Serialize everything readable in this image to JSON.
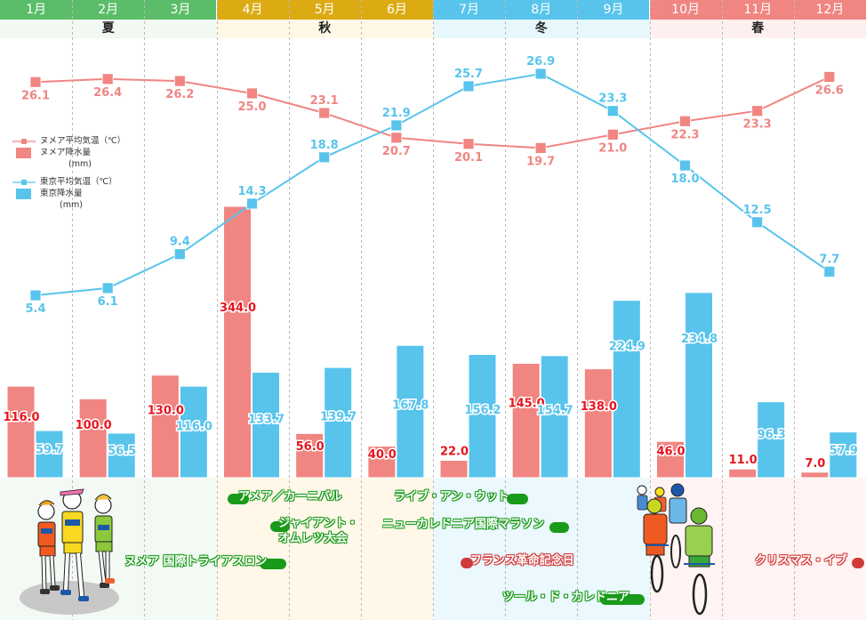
{
  "header": {
    "months": [
      {
        "label": "1月",
        "color": "#5bbd6a"
      },
      {
        "label": "2月",
        "color": "#5bbd6a"
      },
      {
        "label": "3月",
        "color": "#5bbd6a"
      },
      {
        "label": "4月",
        "color": "#dcab14"
      },
      {
        "label": "5月",
        "color": "#dcab14"
      },
      {
        "label": "6月",
        "color": "#dcab14"
      },
      {
        "label": "7月",
        "color": "#58c4ec"
      },
      {
        "label": "8月",
        "color": "#58c4ec"
      },
      {
        "label": "9月",
        "color": "#58c4ec"
      },
      {
        "label": "10月",
        "color": "#f08582"
      },
      {
        "label": "11月",
        "color": "#f08582"
      },
      {
        "label": "12月",
        "color": "#f08582"
      }
    ],
    "seasons": [
      {
        "label": "夏",
        "band": "#f1f9f2",
        "event_band": "#f3faf4"
      },
      {
        "label": "秋",
        "band": "#fff8e6",
        "event_band": "#fff8e8"
      },
      {
        "label": "冬",
        "band": "#e7f7fc",
        "event_band": "#ebf8fd"
      },
      {
        "label": "春",
        "band": "#fff0f0",
        "event_band": "#fff4f3"
      }
    ]
  },
  "legend": {
    "noumea_temp": "ヌメア平均気温（℃）",
    "noumea_rain": "ヌメア降水量",
    "noumea_rain_unit": "(mm)",
    "tokyo_temp": "東京平均気温（℃）",
    "tokyo_rain": "東京降水量",
    "tokyo_rain_unit": "(mm)"
  },
  "colors": {
    "noumea": "#f08582",
    "noumea_label": "#f07a78",
    "noumea_bar_label": "#e8141e",
    "tokyo": "#58c4ec",
    "grid": "#bbbbbb"
  },
  "chart_data": {
    "type": "bar+line",
    "categories": [
      "1月",
      "2月",
      "3月",
      "4月",
      "5月",
      "6月",
      "7月",
      "8月",
      "9月",
      "10月",
      "11月",
      "12月"
    ],
    "series": [
      {
        "name": "ヌメア降水量(mm)",
        "kind": "bar",
        "values": [
          116.0,
          100.0,
          130.0,
          344.0,
          56.0,
          40.0,
          22.0,
          145.0,
          138.0,
          46.0,
          11.0,
          7.0
        ],
        "labels": [
          "116.0",
          "100.0",
          "130.0",
          "344.0",
          "56.0",
          "40.0",
          "22.0",
          "145.0",
          "138.0",
          "46.0",
          "11.0",
          "7.0"
        ]
      },
      {
        "name": "東京降水量(mm)",
        "kind": "bar",
        "values": [
          59.7,
          56.5,
          116.0,
          133.7,
          139.7,
          167.8,
          156.2,
          154.7,
          224.9,
          234.8,
          96.3,
          57.9
        ],
        "labels": [
          "59.7",
          "56.5",
          "116.0",
          "133.7",
          "139.7",
          "167.8",
          "156.2",
          "154.7",
          "224.9",
          "234.8",
          "96.3",
          "57.9"
        ]
      },
      {
        "name": "ヌメア平均気温(℃)",
        "kind": "line",
        "values": [
          26.1,
          26.4,
          26.2,
          25.0,
          23.1,
          20.7,
          20.1,
          19.7,
          21.0,
          22.3,
          23.3,
          26.6
        ],
        "labels": [
          "26.1",
          "26.4",
          "26.2",
          "25.0",
          "23.1",
          "20.7",
          "20.1",
          "19.7",
          "21.0",
          "22.3",
          "23.3",
          "26.6"
        ],
        "label_pos": [
          "below",
          "below",
          "below",
          "below",
          "above",
          "below",
          "below",
          "below",
          "below",
          "below",
          "below",
          "below"
        ]
      },
      {
        "name": "東京平均気温(℃)",
        "kind": "line",
        "values": [
          5.4,
          6.1,
          9.4,
          14.3,
          18.8,
          21.9,
          25.7,
          26.9,
          23.3,
          18.0,
          12.5,
          7.7
        ],
        "labels": [
          "5.4",
          "6.1",
          "9.4",
          "14.3",
          "18.8",
          "21.9",
          "25.7",
          "26.9",
          "23.3",
          "18.0",
          "12.5",
          "7.7"
        ],
        "label_pos": [
          "below",
          "below",
          "above",
          "above",
          "above",
          "above",
          "above",
          "above",
          "above",
          "below",
          "above",
          "above"
        ]
      }
    ],
    "rain_axis": {
      "min": 0,
      "max": 380,
      "unit": "mm"
    },
    "temp_axis": {
      "min": 0,
      "max": 30,
      "unit": "℃"
    },
    "grid": "vertical dashed between months",
    "legend_position": "left"
  },
  "events": [
    {
      "label": "ヌメア 国際トライアスロン",
      "month": "3月-4月",
      "color": "green"
    },
    {
      "label": "アメア／カーニバル",
      "month": "4月",
      "color": "green"
    },
    {
      "label": "ジャイアント・",
      "label2": "オムレツ大会",
      "month": "5月",
      "color": "green"
    },
    {
      "label": "ライブ・アン・ウット",
      "month": "6月-7月",
      "color": "green"
    },
    {
      "label": "ニューカレドニア国際マラソン",
      "month": "6月-8月",
      "color": "green"
    },
    {
      "label": "フランス革命記念日",
      "month": "7月",
      "color": "red"
    },
    {
      "label": "ツール・ド・カレドニア",
      "month": "8月-9月",
      "color": "green"
    },
    {
      "label": "クリスマス・イブ",
      "month": "12月",
      "color": "red"
    }
  ],
  "illustrations": {
    "runners": "runners-illustration",
    "cyclists": "cyclists-illustration"
  }
}
